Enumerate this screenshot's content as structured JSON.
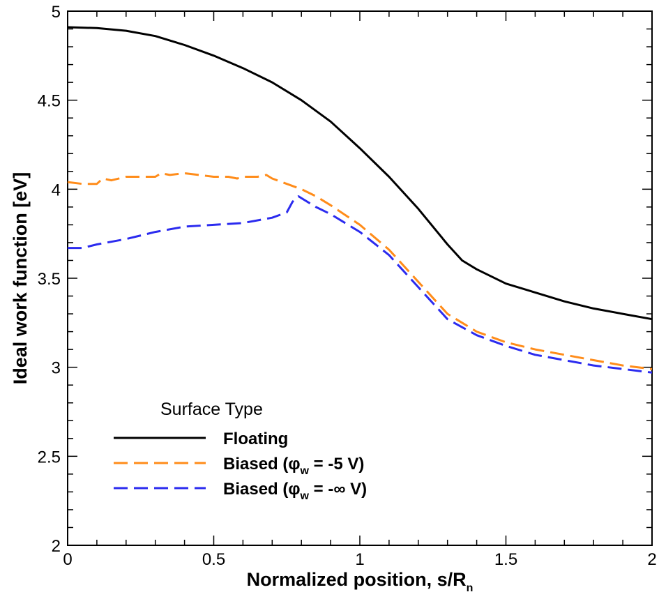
{
  "chart_data": {
    "type": "line",
    "title": "",
    "xlabel": "Normalized position, s/R",
    "xlabel_sub": "n",
    "ylabel": "Ideal work function [eV]",
    "xlim": [
      0,
      2
    ],
    "ylim": [
      2,
      5
    ],
    "x_ticks": [
      "0",
      "0.5",
      "1",
      "1.5",
      "2"
    ],
    "y_ticks": [
      "2",
      "2.5",
      "3",
      "3.5",
      "4",
      "4.5",
      "5"
    ],
    "grid": false,
    "legend": {
      "title": "Surface Type",
      "placement": "bottom-left"
    },
    "series": [
      {
        "name": "Floating",
        "label_parts": [
          "Floating"
        ],
        "color": "#000000",
        "style": "solid",
        "x": [
          0,
          0.1,
          0.2,
          0.3,
          0.4,
          0.5,
          0.6,
          0.7,
          0.8,
          0.9,
          1.0,
          1.1,
          1.2,
          1.3,
          1.35,
          1.4,
          1.5,
          1.6,
          1.7,
          1.8,
          1.9,
          2.0
        ],
        "y": [
          4.91,
          4.905,
          4.89,
          4.86,
          4.81,
          4.75,
          4.68,
          4.6,
          4.5,
          4.38,
          4.23,
          4.07,
          3.89,
          3.69,
          3.6,
          3.55,
          3.47,
          3.42,
          3.37,
          3.33,
          3.3,
          3.27
        ]
      },
      {
        "name": "Biased (φw = -5 V)",
        "label_parts": [
          "Biased (φ",
          "w",
          " = -5 V)"
        ],
        "color": "#ff8c1a",
        "style": "dashed",
        "x": [
          0,
          0.05,
          0.1,
          0.12,
          0.15,
          0.2,
          0.25,
          0.3,
          0.32,
          0.35,
          0.4,
          0.45,
          0.5,
          0.55,
          0.58,
          0.6,
          0.65,
          0.68,
          0.7,
          0.75,
          0.8,
          0.85,
          0.9,
          1.0,
          1.1,
          1.2,
          1.3,
          1.4,
          1.5,
          1.6,
          1.7,
          1.8,
          1.9,
          2.0
        ],
        "y": [
          4.04,
          4.03,
          4.03,
          4.06,
          4.05,
          4.07,
          4.07,
          4.07,
          4.09,
          4.08,
          4.09,
          4.08,
          4.07,
          4.07,
          4.06,
          4.07,
          4.07,
          4.08,
          4.06,
          4.03,
          4.0,
          3.96,
          3.91,
          3.8,
          3.66,
          3.48,
          3.3,
          3.2,
          3.14,
          3.1,
          3.07,
          3.04,
          3.01,
          2.99
        ]
      },
      {
        "name": "Biased (φw = -∞ V)",
        "label_parts": [
          "Biased (φ",
          "w",
          " = -∞ V)"
        ],
        "color": "#2b2bef",
        "style": "dashed",
        "x": [
          0,
          0.05,
          0.1,
          0.2,
          0.3,
          0.4,
          0.5,
          0.6,
          0.7,
          0.75,
          0.77,
          0.79,
          0.8,
          0.85,
          0.9,
          1.0,
          1.1,
          1.2,
          1.3,
          1.4,
          1.5,
          1.6,
          1.7,
          1.8,
          1.9,
          2.0
        ],
        "y": [
          3.67,
          3.67,
          3.69,
          3.72,
          3.76,
          3.79,
          3.8,
          3.81,
          3.84,
          3.87,
          3.93,
          3.96,
          3.95,
          3.9,
          3.86,
          3.76,
          3.63,
          3.45,
          3.27,
          3.18,
          3.12,
          3.07,
          3.04,
          3.01,
          2.99,
          2.97
        ]
      }
    ]
  }
}
